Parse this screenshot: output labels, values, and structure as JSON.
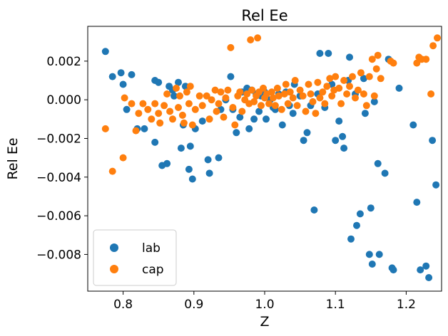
{
  "chart_data": {
    "type": "scatter",
    "title": "Rel Ee",
    "xlabel": "Z",
    "ylabel": "Rel Ee",
    "xlim": [
      0.75,
      1.25
    ],
    "ylim": [
      -0.0099,
      0.0038
    ],
    "xticks": [
      0.8,
      0.9,
      1.0,
      1.1,
      1.2
    ],
    "xtick_labels": [
      "0.8",
      "0.9",
      "1.0",
      "1.1",
      "1.2"
    ],
    "yticks": [
      -0.008,
      -0.006,
      -0.004,
      -0.002,
      0.0,
      0.002
    ],
    "ytick_labels": [
      "−0.008",
      "−0.006",
      "−0.004",
      "−0.002",
      "0.000",
      "0.002"
    ],
    "grid": false,
    "legend_position": "lower-left",
    "series": [
      {
        "name": "lab",
        "color": "#1f77b4",
        "points": [
          [
            0.775,
            0.0025
          ],
          [
            0.785,
            0.0012
          ],
          [
            0.797,
            0.0014
          ],
          [
            0.8,
            0.0008
          ],
          [
            0.812,
            0.0013
          ],
          [
            0.805,
            -0.0005
          ],
          [
            0.82,
            -0.0015
          ],
          [
            0.83,
            -0.0015
          ],
          [
            0.845,
            0.001
          ],
          [
            0.85,
            0.0009
          ],
          [
            0.845,
            -0.0022
          ],
          [
            0.855,
            -0.0034
          ],
          [
            0.862,
            -0.0033
          ],
          [
            0.865,
            0.0007
          ],
          [
            0.87,
            0.0005
          ],
          [
            0.872,
            0.0002
          ],
          [
            0.878,
            0.0009
          ],
          [
            0.882,
            -0.0025
          ],
          [
            0.885,
            -0.0013
          ],
          [
            0.888,
            0.0007
          ],
          [
            0.893,
            -0.0036
          ],
          [
            0.898,
            -0.0041
          ],
          [
            0.895,
            -0.0024
          ],
          [
            0.902,
            -0.0015
          ],
          [
            0.912,
            -0.0011
          ],
          [
            0.92,
            -0.0031
          ],
          [
            0.922,
            -0.0038
          ],
          [
            0.935,
            -0.003
          ],
          [
            0.938,
            -0.0005
          ],
          [
            0.945,
            0.0
          ],
          [
            0.952,
            0.0012
          ],
          [
            0.955,
            -0.0005
          ],
          [
            0.96,
            -0.0017
          ],
          [
            0.965,
            -0.0009
          ],
          [
            0.968,
            0.0004
          ],
          [
            0.975,
            0.0006
          ],
          [
            0.978,
            -0.0015
          ],
          [
            0.982,
            0.0005
          ],
          [
            0.985,
            -0.001
          ],
          [
            0.988,
            0.0003
          ],
          [
            0.992,
            -0.0006
          ],
          [
            0.995,
            0.0002
          ],
          [
            1.0,
            0.0004
          ],
          [
            1.002,
            -0.001
          ],
          [
            1.008,
            0.0
          ],
          [
            1.012,
            -0.0004
          ],
          [
            1.015,
            -0.0005
          ],
          [
            1.02,
            0.0003
          ],
          [
            1.025,
            -0.0013
          ],
          [
            1.03,
            0.0004
          ],
          [
            1.035,
            -0.0003
          ],
          [
            1.04,
            -0.0007
          ],
          [
            1.042,
            0.0008
          ],
          [
            1.05,
            0.0002
          ],
          [
            1.055,
            -0.0021
          ],
          [
            1.06,
            -0.0017
          ],
          [
            1.065,
            -0.0003
          ],
          [
            1.07,
            -0.0057
          ],
          [
            1.075,
            0.0003
          ],
          [
            1.078,
            0.0024
          ],
          [
            1.085,
            -0.0004
          ],
          [
            1.09,
            0.0024
          ],
          [
            1.095,
            0.0008
          ],
          [
            1.1,
            -0.0021
          ],
          [
            1.105,
            -0.0011
          ],
          [
            1.11,
            -0.0019
          ],
          [
            1.112,
            -0.0025
          ],
          [
            1.12,
            0.0022
          ],
          [
            1.118,
            0.001
          ],
          [
            1.122,
            -0.0072
          ],
          [
            1.128,
            0.0003
          ],
          [
            1.13,
            -0.0065
          ],
          [
            1.135,
            -0.0059
          ],
          [
            1.14,
            0.0011
          ],
          [
            1.142,
            -0.0007
          ],
          [
            1.148,
            -0.008
          ],
          [
            1.15,
            -0.0056
          ],
          [
            1.152,
            -0.0085
          ],
          [
            1.155,
            -0.0001
          ],
          [
            1.16,
            -0.0033
          ],
          [
            1.162,
            -0.008
          ],
          [
            1.17,
            -0.0038
          ],
          [
            1.175,
            0.0021
          ],
          [
            1.18,
            -0.0087
          ],
          [
            1.182,
            -0.0088
          ],
          [
            1.19,
            0.0006
          ],
          [
            1.21,
            -0.0013
          ],
          [
            1.215,
            -0.0053
          ],
          [
            1.22,
            -0.0088
          ],
          [
            1.228,
            -0.0086
          ],
          [
            1.232,
            -0.0092
          ],
          [
            1.237,
            -0.0021
          ],
          [
            1.242,
            -0.0044
          ]
        ]
      },
      {
        "name": "cap",
        "color": "#ff7f0e",
        "points": [
          [
            0.775,
            -0.0015
          ],
          [
            0.785,
            -0.0037
          ],
          [
            0.8,
            -0.003
          ],
          [
            0.802,
            0.0001
          ],
          [
            0.812,
            -0.0002
          ],
          [
            0.818,
            -0.0016
          ],
          [
            0.822,
            -0.0007
          ],
          [
            0.828,
            -0.0002
          ],
          [
            0.835,
            -0.0005
          ],
          [
            0.84,
            -0.001
          ],
          [
            0.845,
            -0.0002
          ],
          [
            0.85,
            -0.0007
          ],
          [
            0.852,
            -0.0012
          ],
          [
            0.858,
            -0.0003
          ],
          [
            0.862,
            0.0003
          ],
          [
            0.866,
            -0.0006
          ],
          [
            0.87,
            -0.001
          ],
          [
            0.875,
            0.0006
          ],
          [
            0.878,
            -0.0004
          ],
          [
            0.88,
            0.0002
          ],
          [
            0.884,
            -0.0008
          ],
          [
            0.886,
            -0.0012
          ],
          [
            0.89,
            0.0004
          ],
          [
            0.893,
            -0.0002
          ],
          [
            0.895,
            0.0007
          ],
          [
            0.898,
            -0.0013
          ],
          [
            0.902,
            -0.0005
          ],
          [
            0.908,
            0.0002
          ],
          [
            0.912,
            -0.0003
          ],
          [
            0.918,
            0.0002
          ],
          [
            0.922,
            -0.001
          ],
          [
            0.925,
            0.0
          ],
          [
            0.93,
            0.0005
          ],
          [
            0.932,
            -0.0006
          ],
          [
            0.935,
            -0.0002
          ],
          [
            0.938,
            0.0004
          ],
          [
            0.942,
            -0.0009
          ],
          [
            0.945,
            0.0001
          ],
          [
            0.948,
            0.0005
          ],
          [
            0.952,
            0.0027
          ],
          [
            0.955,
            -0.0004
          ],
          [
            0.958,
            -0.0013
          ],
          [
            0.962,
            0.0002
          ],
          [
            0.965,
            0.0004
          ],
          [
            0.968,
            -0.0006
          ],
          [
            0.972,
            0.0
          ],
          [
            0.975,
            0.0003
          ],
          [
            0.978,
            -0.0002
          ],
          [
            0.98,
            0.0031
          ],
          [
            0.982,
            0.0005
          ],
          [
            0.985,
            -0.0001
          ],
          [
            0.988,
            0.0002
          ],
          [
            0.99,
            0.0032
          ],
          [
            0.992,
            0.0004
          ],
          [
            0.995,
            -0.0003
          ],
          [
            0.998,
            0.0006
          ],
          [
            1.0,
            0.0001
          ],
          [
            1.003,
            0.0003
          ],
          [
            1.006,
            -0.0002
          ],
          [
            1.01,
            0.0004
          ],
          [
            1.012,
            0.0001
          ],
          [
            1.015,
            -0.0003
          ],
          [
            1.018,
            0.0006
          ],
          [
            1.02,
            0.0002
          ],
          [
            1.024,
            -0.0005
          ],
          [
            1.028,
            0.0003
          ],
          [
            1.03,
            0.0008
          ],
          [
            1.033,
            -0.0002
          ],
          [
            1.036,
            0.0004
          ],
          [
            1.04,
            0.0001
          ],
          [
            1.043,
            0.001
          ],
          [
            1.046,
            -0.0003
          ],
          [
            1.05,
            0.0005
          ],
          [
            1.054,
            0.0002
          ],
          [
            1.058,
            -0.0006
          ],
          [
            1.062,
            0.0008
          ],
          [
            1.065,
            0.0003
          ],
          [
            1.068,
            -0.0001
          ],
          [
            1.072,
            -0.0007
          ],
          [
            1.075,
            0.0009
          ],
          [
            1.078,
            0.0001
          ],
          [
            1.082,
            0.0004
          ],
          [
            1.085,
            -0.0002
          ],
          [
            1.088,
            0.0007
          ],
          [
            1.092,
            0.0011
          ],
          [
            1.095,
            0.0002
          ],
          [
            1.098,
            0.0005
          ],
          [
            1.1,
            0.0012
          ],
          [
            1.105,
            0.0006
          ],
          [
            1.108,
            -0.0002
          ],
          [
            1.112,
            0.001
          ],
          [
            1.116,
            0.0003
          ],
          [
            1.12,
            0.0007
          ],
          [
            1.124,
            0.0012
          ],
          [
            1.128,
            0.0001
          ],
          [
            1.132,
            0.0005
          ],
          [
            1.136,
            0.0014
          ],
          [
            1.14,
            0.0003
          ],
          [
            1.144,
            -0.0003
          ],
          [
            1.148,
            0.0012
          ],
          [
            1.152,
            0.0021
          ],
          [
            1.155,
            0.0002
          ],
          [
            1.158,
            0.0016
          ],
          [
            1.16,
            0.0023
          ],
          [
            1.164,
            0.0011
          ],
          [
            1.178,
            0.002
          ],
          [
            1.182,
            0.0019
          ],
          [
            1.215,
            0.0019
          ],
          [
            1.218,
            0.0022
          ],
          [
            1.222,
            0.0021
          ],
          [
            1.228,
            0.0021
          ],
          [
            1.235,
            0.0003
          ],
          [
            1.238,
            0.0028
          ],
          [
            1.244,
            0.0032
          ]
        ]
      }
    ]
  }
}
